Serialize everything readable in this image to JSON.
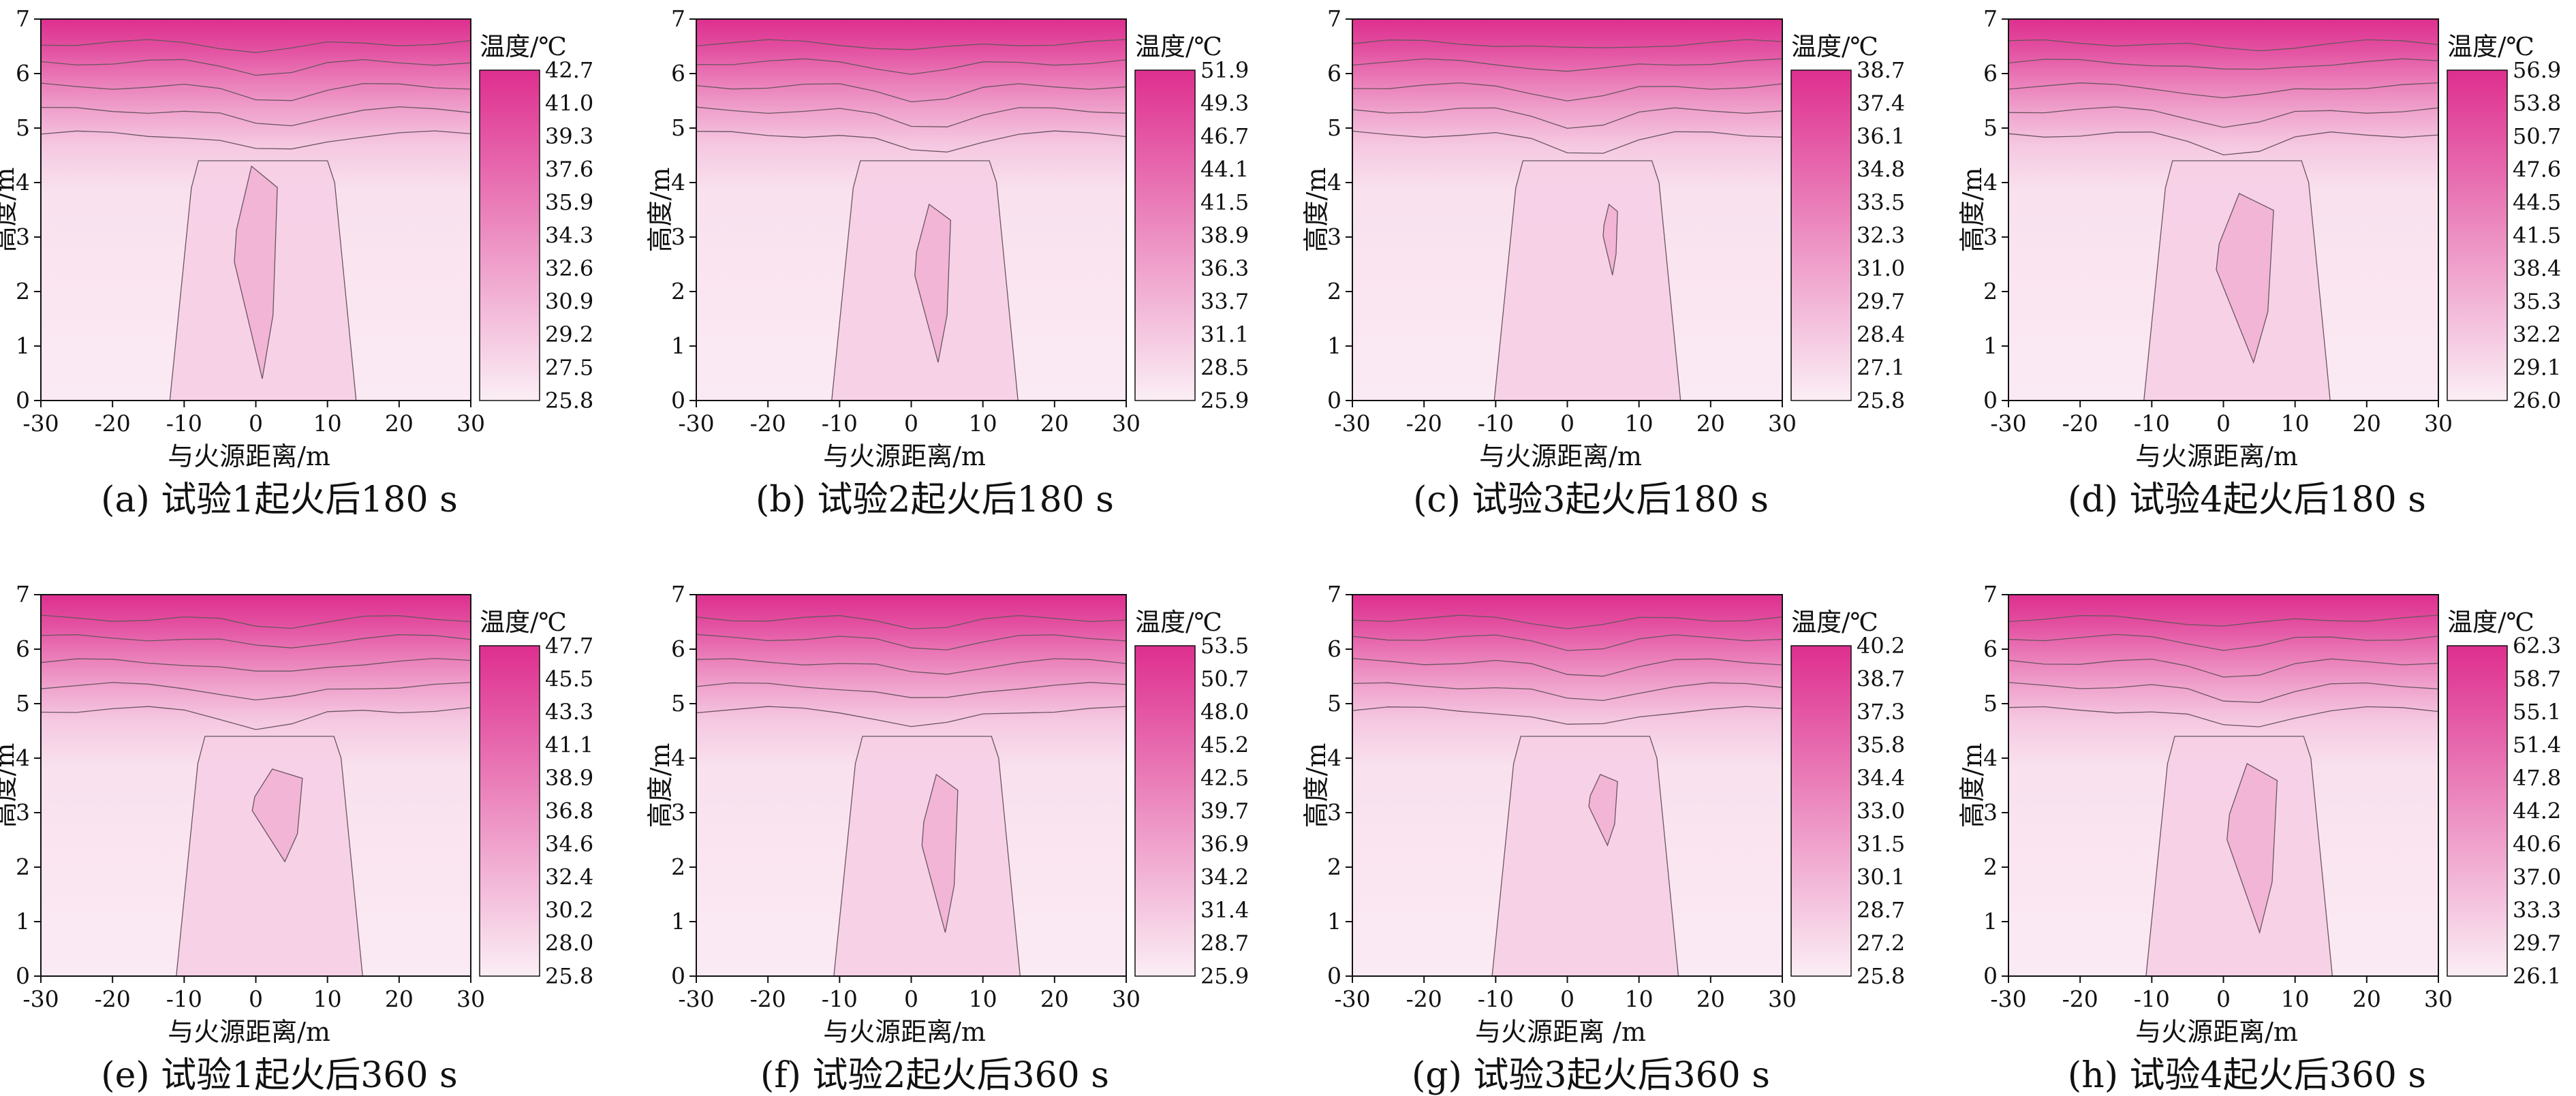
{
  "colors": {
    "low": "#fbeef5",
    "high": "#de2f8f",
    "contour": "#6a5560",
    "axis": "#111111"
  },
  "chart_data": [
    {
      "type": "heatmap",
      "caption": "(a) 试验1起火后180 s",
      "xlabel": "与火源距离/m",
      "ylabel": "高度/m",
      "x_ticks": [
        "-30",
        "-20",
        "-10",
        "0",
        "10",
        "20",
        "30"
      ],
      "y_ticks": [
        "0",
        "1",
        "2",
        "3",
        "4",
        "5",
        "6",
        "7"
      ],
      "xlim": [
        -30,
        30
      ],
      "ylim": [
        0,
        7
      ],
      "colorbar_title": "温度/℃",
      "colorbar_ticks": [
        "42.7",
        "41.0",
        "39.3",
        "37.6",
        "35.9",
        "34.3",
        "32.6",
        "30.9",
        "29.2",
        "27.5",
        "25.8"
      ],
      "vmin": 25.8,
      "vmax": 42.7,
      "core_height": [
        0.4,
        4.3
      ],
      "core_center_x": 0,
      "core_width": 6
    },
    {
      "type": "heatmap",
      "caption": "(b) 试验2起火后180 s",
      "xlabel": "与火源距离/m",
      "ylabel": "高度/m",
      "x_ticks": [
        "-30",
        "-20",
        "-10",
        "0",
        "10",
        "20",
        "30"
      ],
      "y_ticks": [
        "0",
        "1",
        "2",
        "3",
        "4",
        "5",
        "6",
        "7"
      ],
      "xlim": [
        -30,
        30
      ],
      "ylim": [
        0,
        7
      ],
      "colorbar_title": "温度/℃",
      "colorbar_ticks": [
        "51.9",
        "49.3",
        "46.7",
        "44.1",
        "41.5",
        "38.9",
        "36.3",
        "33.7",
        "31.1",
        "28.5",
        "25.9"
      ],
      "vmin": 25.9,
      "vmax": 51.9,
      "core_height": [
        0.7,
        3.6
      ],
      "core_center_x": 3,
      "core_width": 5
    },
    {
      "type": "heatmap",
      "caption": "(c) 试验3起火后180 s",
      "xlabel": "与火源距离/m",
      "ylabel": "高度/m",
      "x_ticks": [
        "-30",
        "-20",
        "-10",
        "0",
        "10",
        "20",
        "30"
      ],
      "y_ticks": [
        "0",
        "1",
        "2",
        "3",
        "4",
        "5",
        "6",
        "7"
      ],
      "xlim": [
        -30,
        30
      ],
      "ylim": [
        0,
        7
      ],
      "colorbar_title": "温度/℃",
      "colorbar_ticks": [
        "38.7",
        "37.4",
        "36.1",
        "34.8",
        "33.5",
        "32.3",
        "31.0",
        "29.7",
        "28.4",
        "27.1",
        "25.8"
      ],
      "vmin": 25.8,
      "vmax": 38.7,
      "core_height": [
        2.3,
        3.6
      ],
      "core_center_x": 6,
      "core_width": 2
    },
    {
      "type": "heatmap",
      "caption": "(d) 试验4起火后180 s",
      "xlabel": "与火源距离/m",
      "ylabel": "高度/m",
      "x_ticks": [
        "-30",
        "-20",
        "-10",
        "0",
        "10",
        "20",
        "30"
      ],
      "y_ticks": [
        "0",
        "1",
        "2",
        "3",
        "4",
        "5",
        "6",
        "7"
      ],
      "xlim": [
        -30,
        30
      ],
      "ylim": [
        0,
        7
      ],
      "colorbar_title": "温度/℃",
      "colorbar_ticks": [
        "56.9",
        "53.8",
        "50.7",
        "47.6",
        "44.5",
        "41.5",
        "38.4",
        "35.3",
        "32.2",
        "29.1",
        "26.0"
      ],
      "vmin": 26.0,
      "vmax": 56.9,
      "core_height": [
        0.7,
        3.8
      ],
      "core_center_x": 3,
      "core_width": 8
    },
    {
      "type": "heatmap",
      "caption": "(e) 试验1起火后360 s",
      "xlabel": "与火源距离/m",
      "ylabel": "高度/m",
      "x_ticks": [
        "-30",
        "-20",
        "-10",
        "0",
        "10",
        "20",
        "30"
      ],
      "y_ticks": [
        "0",
        "1",
        "2",
        "3",
        "4",
        "5",
        "6",
        "7"
      ],
      "xlim": [
        -30,
        30
      ],
      "ylim": [
        0,
        7
      ],
      "colorbar_title": "温度/℃",
      "colorbar_ticks": [
        "47.7",
        "45.5",
        "43.3",
        "41.1",
        "38.9",
        "36.8",
        "34.6",
        "32.4",
        "30.2",
        "28.0",
        "25.8"
      ],
      "vmin": 25.8,
      "vmax": 47.7,
      "core_height": [
        2.1,
        3.8
      ],
      "core_center_x": 3,
      "core_width": 7
    },
    {
      "type": "heatmap",
      "caption": "(f) 试验2起火后360 s",
      "xlabel": "与火源距离/m",
      "ylabel": "高度/m",
      "x_ticks": [
        "-30",
        "-20",
        "-10",
        "0",
        "10",
        "20",
        "30"
      ],
      "y_ticks": [
        "0",
        "1",
        "2",
        "3",
        "4",
        "5",
        "6",
        "7"
      ],
      "xlim": [
        -30,
        30
      ],
      "ylim": [
        0,
        7
      ],
      "colorbar_title": "温度/℃",
      "colorbar_ticks": [
        "53.5",
        "50.7",
        "48.0",
        "45.2",
        "42.5",
        "39.7",
        "36.9",
        "34.2",
        "31.4",
        "28.7",
        "25.9"
      ],
      "vmin": 25.9,
      "vmax": 53.5,
      "core_height": [
        0.8,
        3.7
      ],
      "core_center_x": 4,
      "core_width": 5
    },
    {
      "type": "heatmap",
      "caption": "(g) 试验3起火后360 s",
      "xlabel": "与火源距离 /m",
      "ylabel": "高度/m",
      "x_ticks": [
        "-30",
        "-20",
        "-10",
        "0",
        "10",
        "20",
        "30"
      ],
      "y_ticks": [
        "0",
        "1",
        "2",
        "3",
        "4",
        "5",
        "6",
        "7"
      ],
      "xlim": [
        -30,
        30
      ],
      "ylim": [
        0,
        7
      ],
      "colorbar_title": "温度/℃",
      "colorbar_ticks": [
        "40.2",
        "38.7",
        "37.3",
        "35.8",
        "34.4",
        "33.0",
        "31.5",
        "30.1",
        "28.7",
        "27.2",
        "25.8"
      ],
      "vmin": 25.8,
      "vmax": 40.2,
      "core_height": [
        2.4,
        3.7
      ],
      "core_center_x": 5,
      "core_width": 4
    },
    {
      "type": "heatmap",
      "caption": "(h) 试验4起火后360 s",
      "xlabel": "与火源距离/m",
      "ylabel": "高度/m",
      "x_ticks": [
        "-30",
        "-20",
        "-10",
        "0",
        "10",
        "20",
        "30"
      ],
      "y_ticks": [
        "0",
        "1",
        "2",
        "3",
        "4",
        "5",
        "6",
        "7"
      ],
      "xlim": [
        -30,
        30
      ],
      "ylim": [
        0,
        7
      ],
      "colorbar_title": "温度/℃",
      "colorbar_ticks": [
        "62.3",
        "58.7",
        "55.1",
        "51.4",
        "47.8",
        "44.2",
        "40.6",
        "37.0",
        "33.3",
        "29.7",
        "26.1"
      ],
      "vmin": 26.1,
      "vmax": 62.3,
      "core_height": [
        0.8,
        3.9
      ],
      "core_center_x": 4,
      "core_width": 7
    }
  ]
}
